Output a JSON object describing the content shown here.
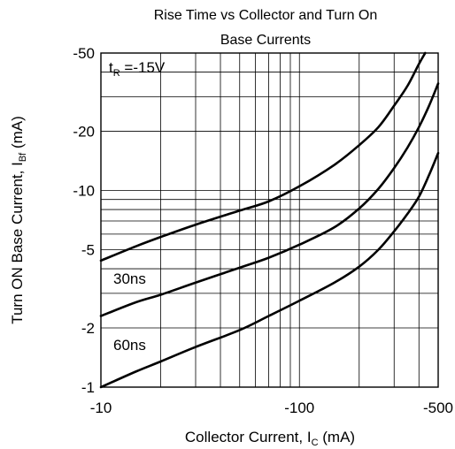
{
  "chart_data": {
    "type": "line",
    "title_line1": "Rise Time vs Collector and Turn On",
    "title_line2": "Base Currents",
    "xlabel_main": "Collector Current, I",
    "xlabel_sub": "C",
    "xlabel_unit": " (mA)",
    "ylabel_main": "Turn ON Base Current, I",
    "ylabel_sub": "Bf",
    "ylabel_unit": " (mA)",
    "x_scale": "log",
    "y_scale": "log",
    "xlim": [
      -10,
      -500
    ],
    "ylim": [
      -1,
      -50
    ],
    "grid": true,
    "x_tick_values": [
      -10,
      -100,
      -500
    ],
    "x_tick_labels": [
      "-10",
      "-100",
      "-500"
    ],
    "y_tick_values": [
      -1,
      -2,
      -5,
      -10,
      -20,
      -50
    ],
    "y_tick_labels": [
      "-1",
      "-2",
      "-5",
      "-10",
      "-20",
      "-50"
    ],
    "annotations": {
      "condition_main": "t",
      "condition_sub": "R",
      "condition_rest": " =-15V",
      "label_30ns": "30ns",
      "label_60ns": "60ns"
    },
    "series": [
      {
        "points": [
          [
            -10,
            -4.4
          ],
          [
            -15,
            -5.2
          ],
          [
            -20,
            -5.8
          ],
          [
            -30,
            -6.7
          ],
          [
            -50,
            -7.9
          ],
          [
            -70,
            -8.8
          ],
          [
            -100,
            -10.5
          ],
          [
            -150,
            -13.5
          ],
          [
            -200,
            -17
          ],
          [
            -250,
            -21
          ],
          [
            -300,
            -27
          ],
          [
            -350,
            -34
          ],
          [
            -400,
            -44
          ],
          [
            -430,
            -50
          ]
        ]
      },
      {
        "points": [
          [
            -10,
            -2.3
          ],
          [
            -15,
            -2.7
          ],
          [
            -20,
            -2.95
          ],
          [
            -30,
            -3.4
          ],
          [
            -50,
            -4.05
          ],
          [
            -70,
            -4.55
          ],
          [
            -100,
            -5.3
          ],
          [
            -150,
            -6.5
          ],
          [
            -200,
            -8.1
          ],
          [
            -250,
            -10.2
          ],
          [
            -300,
            -13
          ],
          [
            -350,
            -16.5
          ],
          [
            -400,
            -21
          ],
          [
            -450,
            -27
          ],
          [
            -500,
            -35
          ]
        ]
      },
      {
        "points": [
          [
            -10,
            -1.0
          ],
          [
            -15,
            -1.2
          ],
          [
            -20,
            -1.35
          ],
          [
            -30,
            -1.6
          ],
          [
            -50,
            -1.95
          ],
          [
            -70,
            -2.3
          ],
          [
            -100,
            -2.75
          ],
          [
            -150,
            -3.4
          ],
          [
            -200,
            -4.1
          ],
          [
            -250,
            -5.0
          ],
          [
            -300,
            -6.2
          ],
          [
            -350,
            -7.6
          ],
          [
            -400,
            -9.3
          ],
          [
            -450,
            -12
          ],
          [
            -500,
            -15.5
          ]
        ]
      }
    ]
  }
}
